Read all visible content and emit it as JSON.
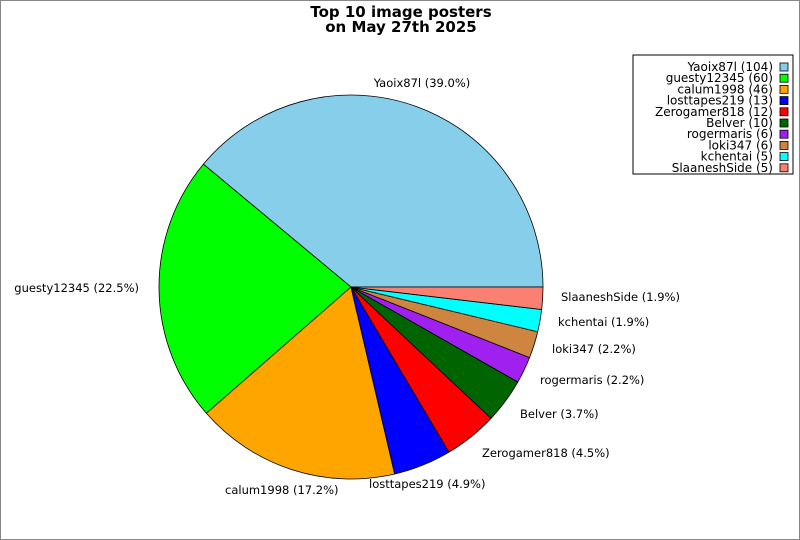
{
  "chart_data": {
    "type": "pie",
    "title": "Top 10 image posters",
    "subtitle": "on May 27th 2025",
    "start_angle_deg": 0,
    "direction": "counterclockwise",
    "legend_placement": "top-right",
    "slices": [
      {
        "name": "Yaoix87l",
        "value": 104,
        "percent_label": "Yaoix87l (39.0%)",
        "legend_label": "Yaoix87l (104)",
        "color": "#87ceeb"
      },
      {
        "name": "guesty12345",
        "value": 60,
        "percent_label": "guesty12345 (22.5%)",
        "legend_label": "guesty12345 (60)",
        "color": "#00ff00"
      },
      {
        "name": "calum1998",
        "value": 46,
        "percent_label": "calum1998 (17.2%)",
        "legend_label": "calum1998 (46)",
        "color": "#ffa500"
      },
      {
        "name": "losttapes219",
        "value": 13,
        "percent_label": "losttapes219 (4.9%)",
        "legend_label": "losttapes219 (13)",
        "color": "#0000ff"
      },
      {
        "name": "Zerogamer818",
        "value": 12,
        "percent_label": "Zerogamer818 (4.5%)",
        "legend_label": "Zerogamer818 (12)",
        "color": "#ff0000"
      },
      {
        "name": "Belver",
        "value": 10,
        "percent_label": "Belver (3.7%)",
        "legend_label": "Belver (10)",
        "color": "#006400"
      },
      {
        "name": "rogermaris",
        "value": 6,
        "percent_label": "rogermaris (2.2%)",
        "legend_label": "rogermaris (6)",
        "color": "#a020f0"
      },
      {
        "name": "loki347",
        "value": 6,
        "percent_label": "loki347 (2.2%)",
        "legend_label": "loki347 (6)",
        "color": "#cd853f"
      },
      {
        "name": "kchentai",
        "value": 5,
        "percent_label": "kchentai (1.9%)",
        "legend_label": "kchentai (5)",
        "color": "#00ffff"
      },
      {
        "name": "SlaaneshSide",
        "value": 5,
        "percent_label": "SlaaneshSide (1.9%)",
        "legend_label": "SlaaneshSide (5)",
        "color": "#fa8072"
      }
    ]
  }
}
